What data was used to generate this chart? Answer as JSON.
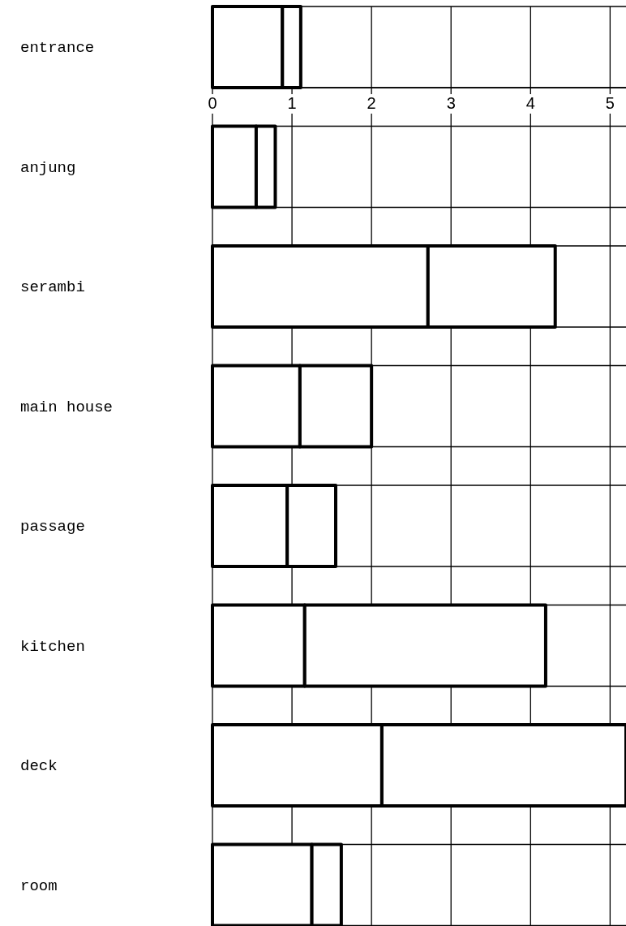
{
  "chart_data": {
    "type": "bar",
    "orientation": "horizontal",
    "stacked": true,
    "categories": [
      "entrance",
      "anjung",
      "serambi",
      "main house",
      "passage",
      "kitchen",
      "deck",
      "room"
    ],
    "series": [
      {
        "color": "#ffffff",
        "values": [
          0.88,
          0.55,
          2.71,
          1.1,
          0.94,
          1.16,
          2.13,
          1.25
        ]
      },
      {
        "color": "#ffffff",
        "values": [
          0.23,
          0.24,
          1.6,
          0.9,
          0.61,
          3.03,
          3.07,
          0.37
        ]
      }
    ],
    "xlim": [
      0,
      5.2
    ],
    "xticks": [
      0,
      1,
      2,
      3,
      4,
      5
    ],
    "grid": true
  }
}
